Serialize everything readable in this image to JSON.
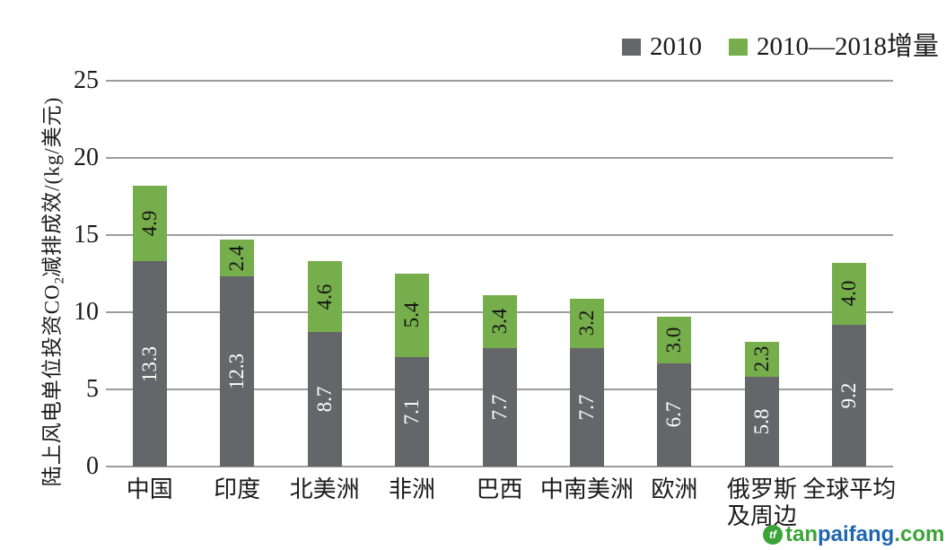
{
  "chart_data": {
    "type": "bar",
    "stacked": true,
    "categories": [
      "中国",
      "印度",
      "北美洲",
      "非洲",
      "巴西",
      "中南美洲",
      "欧洲",
      "俄罗斯\n及周边",
      "全球平均"
    ],
    "series": [
      {
        "name": "2010",
        "color": "#656669",
        "label_color": "#ffffff",
        "values": [
          13.3,
          12.3,
          8.7,
          7.1,
          7.7,
          7.7,
          6.7,
          5.8,
          9.2
        ]
      },
      {
        "name": "2010—2018增量",
        "color": "#76ae4c",
        "label_color": "#141414",
        "values": [
          4.9,
          2.4,
          4.6,
          5.4,
          3.4,
          3.2,
          3.0,
          2.3,
          4.0
        ]
      }
    ],
    "totals": [
      18.2,
      14.7,
      13.3,
      12.5,
      11.1,
      10.9,
      9.7,
      8.1,
      13.2
    ],
    "ylabel": "陆上风电单位投资CO₂减排成效/(kg/美元)",
    "ylabel_parts": {
      "pre": "陆上风电单位投资CO",
      "sub": "2",
      "post": "减排成效/(kg/美元)"
    },
    "yticks": [
      0,
      5,
      10,
      15,
      20,
      25
    ],
    "ylim": [
      0,
      25
    ],
    "grid": "horizontal",
    "legend_position": "top-right",
    "gridline_color": "#9c9c9c"
  },
  "watermark": {
    "logo_monogram": "tf",
    "text_part1": "tan",
    "text_part2": "paifang",
    "text_part3": ".com",
    "green": "#3aa437",
    "blue": "#1f66b0"
  }
}
